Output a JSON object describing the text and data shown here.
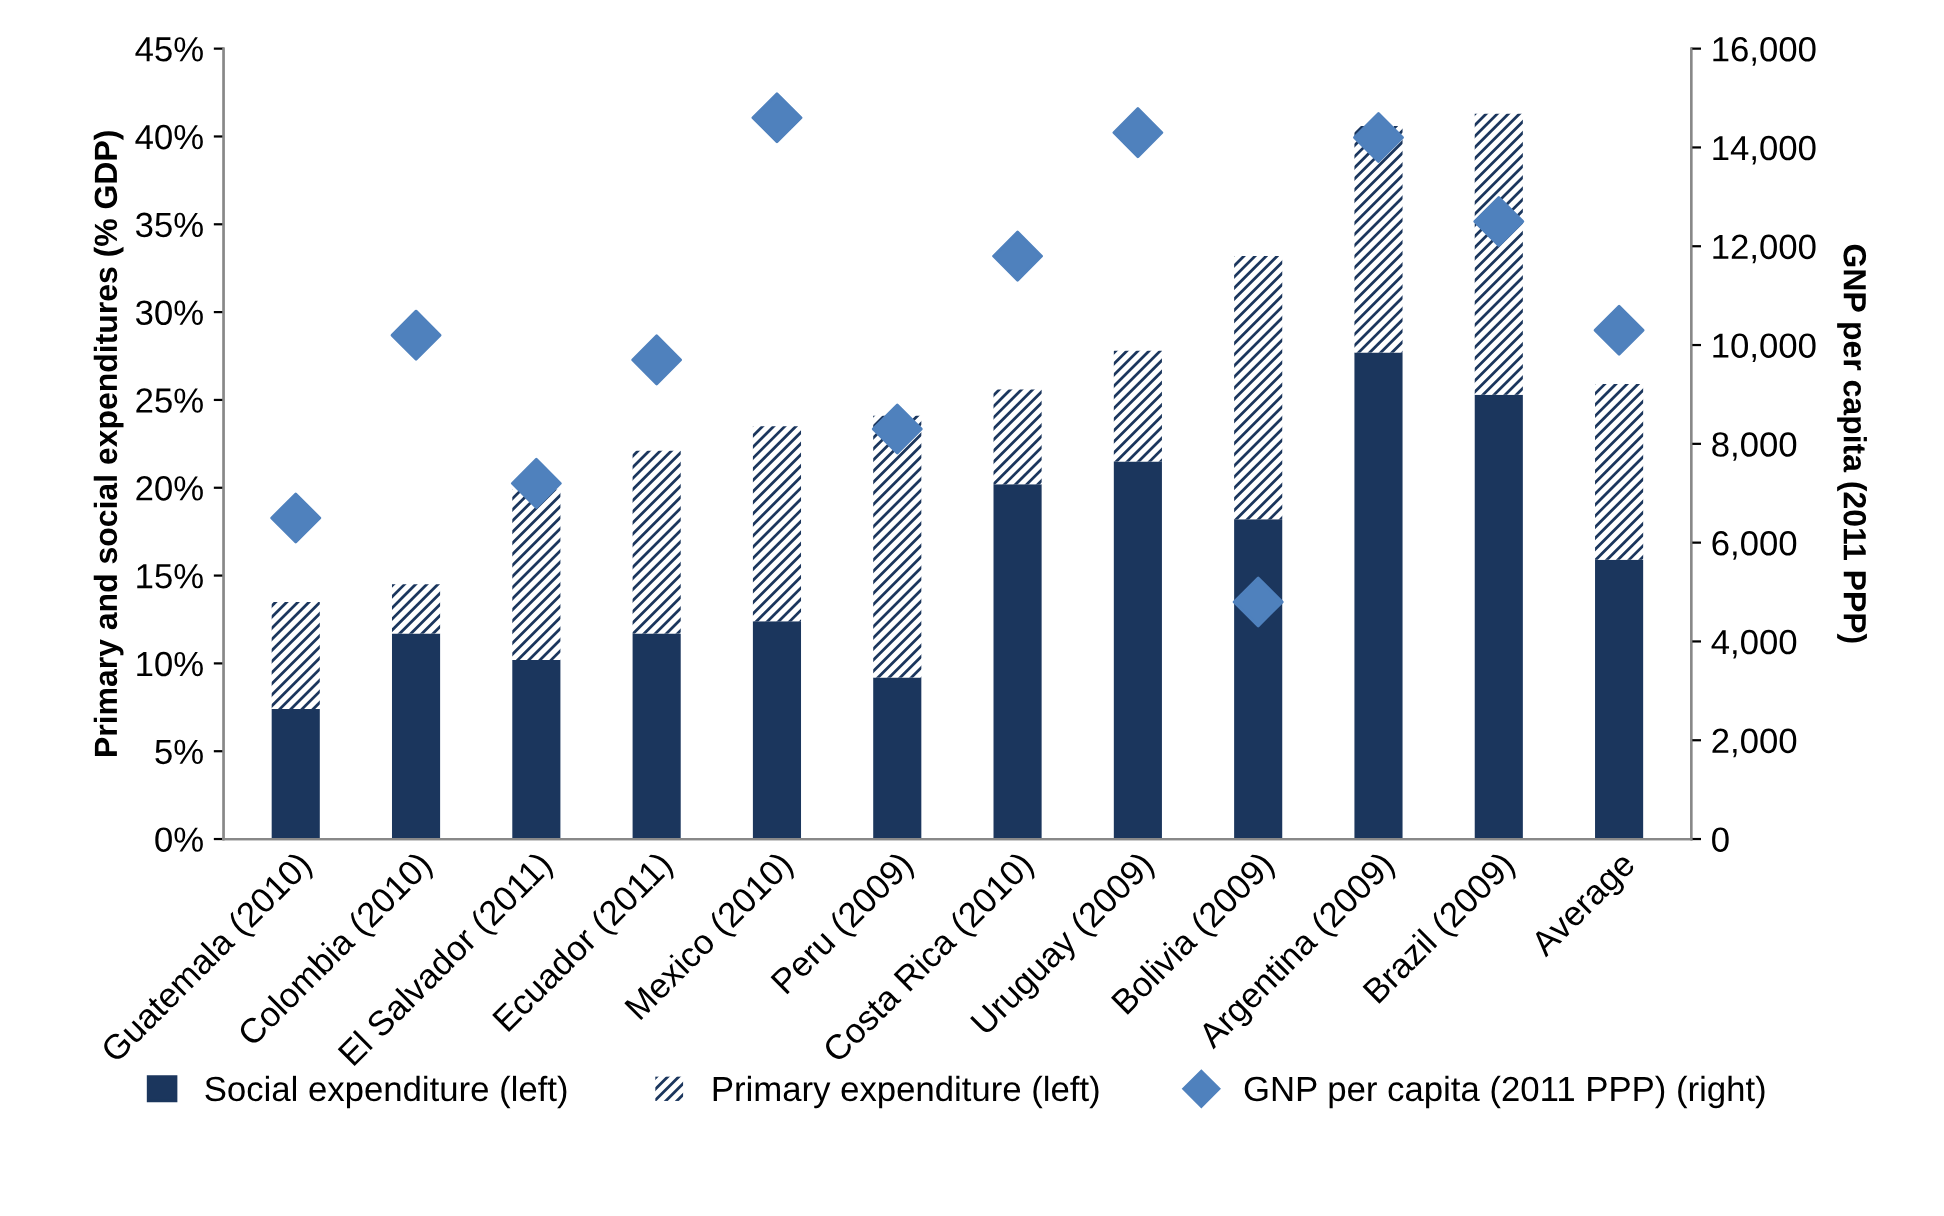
{
  "chart_data": {
    "type": "bar",
    "stacked": true,
    "ylabel": "Primary and social expenditures (% GDP)",
    "y2label": "GNP per capita (2011 PPP)",
    "categories": [
      "Guatemala (2010)",
      "Colombia (2010)",
      "El Salvador (2011)",
      "Ecuador (2011)",
      "Mexico (2010)",
      "Peru (2009)",
      "Costa Rica (2010)",
      "Uruguay (2009)",
      "Bolivia (2009)",
      "Argentina (2009)",
      "Brazil (2009)",
      "Average"
    ],
    "series": [
      {
        "name": "Social expenditure (left)",
        "color": "#1b365d",
        "values": [
          7.4,
          11.7,
          10.2,
          11.7,
          12.4,
          9.2,
          20.2,
          21.5,
          18.2,
          27.7,
          25.3,
          15.9
        ]
      },
      {
        "name": "Primary expenditure (left)",
        "color": "#1b365d",
        "values": [
          6.1,
          2.8,
          9.7,
          10.4,
          11.1,
          14.9,
          5.4,
          6.3,
          15.0,
          12.9,
          16.0,
          10.0
        ]
      },
      {
        "name": "GNP per capita (2011 PPP) (right)",
        "type": "scatter",
        "axis": "y2",
        "marker": "diamond",
        "color": "#4f81bd",
        "values": [
          6500,
          10200,
          7200,
          9700,
          14600,
          8300,
          11800,
          14300,
          4800,
          14200,
          12500,
          10300
        ]
      }
    ],
    "ylim": [
      0,
      45
    ],
    "yticks": [
      {
        "value": 0,
        "label": "0%"
      },
      {
        "value": 5,
        "label": "5%"
      },
      {
        "value": 10,
        "label": "10%"
      },
      {
        "value": 15,
        "label": "15%"
      },
      {
        "value": 20,
        "label": "20%"
      },
      {
        "value": 25,
        "label": "25%"
      },
      {
        "value": 30,
        "label": "30%"
      },
      {
        "value": 35,
        "label": "35%"
      },
      {
        "value": 40,
        "label": "40%"
      },
      {
        "value": 45,
        "label": "45%"
      }
    ],
    "y2lim": [
      0,
      16000
    ],
    "y2ticks": [
      0,
      {
        "value": 2000,
        "label": "2,000"
      },
      {
        "value": 4000,
        "label": "4,000"
      },
      {
        "value": 6000,
        "label": "6,000"
      },
      {
        "value": 8000,
        "label": "8,000"
      },
      {
        "value": 10000,
        "label": "10,000"
      },
      {
        "value": 12000,
        "label": "12,000"
      },
      {
        "value": 14000,
        "label": "14,000"
      },
      {
        "value": 16000,
        "label": "16,000"
      }
    ],
    "grid": false,
    "legend": "bottom"
  }
}
